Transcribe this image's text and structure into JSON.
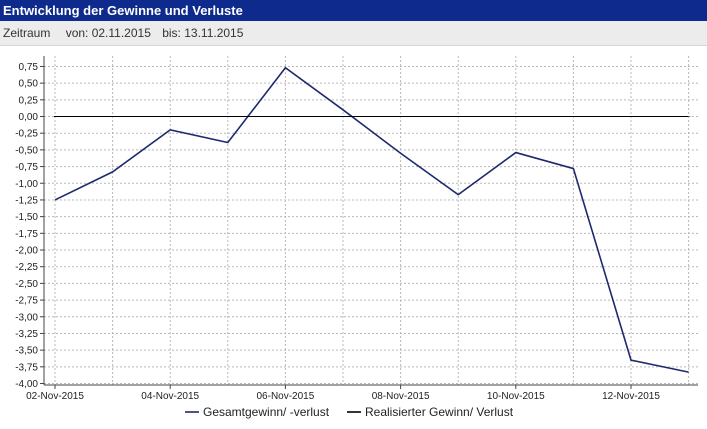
{
  "header": {
    "title": "Entwicklung der Gewinne und Verluste"
  },
  "period": {
    "label": "Zeitraum",
    "from": "von: 02.11.2015",
    "to": "bis: 13.11.2015"
  },
  "chart_data": {
    "type": "line",
    "x": [
      "02-Nov-2015",
      "03-Nov-2015",
      "04-Nov-2015",
      "05-Nov-2015",
      "06-Nov-2015",
      "07-Nov-2015",
      "08-Nov-2015",
      "09-Nov-2015",
      "10-Nov-2015",
      "11-Nov-2015",
      "12-Nov-2015",
      "13-Nov-2015"
    ],
    "xtick_labels": [
      "02-Nov-2015",
      "04-Nov-2015",
      "06-Nov-2015",
      "08-Nov-2015",
      "10-Nov-2015",
      "12-Nov-2015"
    ],
    "ytick_labels": [
      "0,75",
      "0,50",
      "0,25",
      "0,00",
      "-0,25",
      "-0,50",
      "-0,75",
      "-1,00",
      "-1,25",
      "-1,50",
      "-1,75",
      "-2,00",
      "-2,25",
      "-2,50",
      "-2,75",
      "-3,00",
      "-3,25",
      "-3,50",
      "-3,75",
      "-4,00"
    ],
    "ylim": [
      -4.0,
      0.85
    ],
    "grid": true,
    "legend_position": "bottom",
    "series": [
      {
        "name": "Gesamtgewinn/ -verlust",
        "color": "#1f2a6e",
        "values": [
          -1.25,
          -0.83,
          -0.2,
          -0.39,
          0.73,
          0.1,
          -0.55,
          -1.17,
          -0.54,
          -0.78,
          -3.65,
          -3.83
        ]
      },
      {
        "name": "Realisierter Gewinn/ Verlust",
        "color": "#000000",
        "values": [
          0,
          0,
          0,
          0,
          0,
          0,
          0,
          0,
          0,
          0,
          0,
          0
        ]
      }
    ]
  }
}
